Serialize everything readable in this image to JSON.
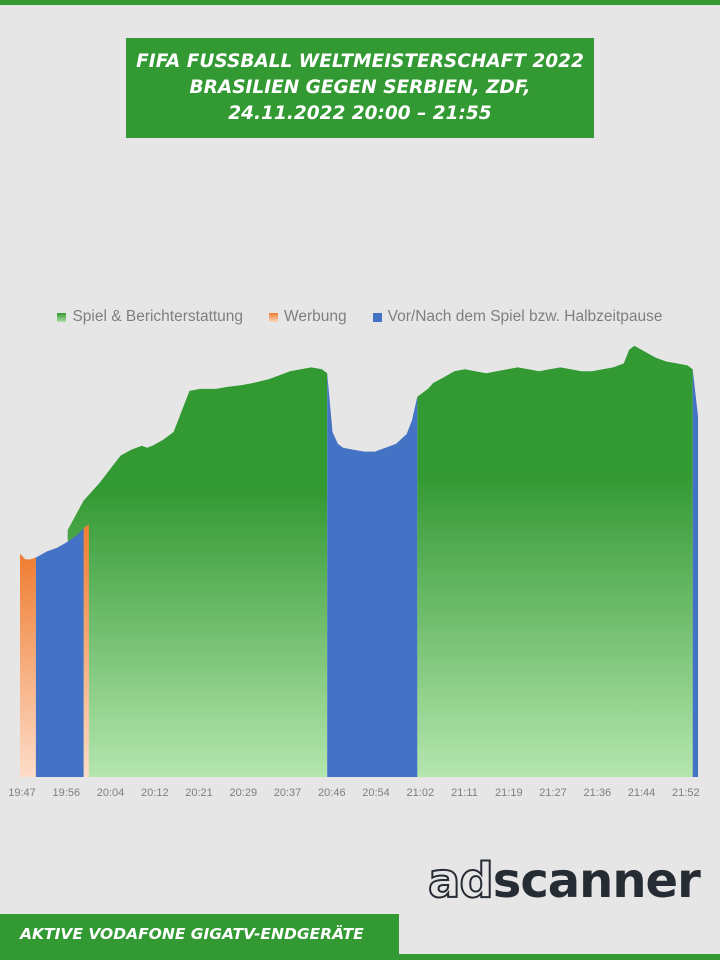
{
  "header": {
    "title_line1": "FIFA FUSSBALL WELTMEISTERSCHAFT 2022",
    "title_line2": "BRASILIEN GEGEN SERBIEN, ZDF,",
    "title_line3": "24.11.2022  20:00 – 21:55"
  },
  "footer": {
    "label": "AKTIVE VODAFONE GIGATV-ENDGERÄTE"
  },
  "logo": {
    "text_ad": "ad",
    "text_scanner": "scanner"
  },
  "colors": {
    "brand_green": "#339933",
    "spiel": "#339933",
    "werbung": "#ef7d31",
    "vor_nach": "#4472c4",
    "background": "#e6e6e6"
  },
  "chart_data": {
    "type": "area",
    "title": "",
    "xlabel": "",
    "ylabel": "",
    "legend_position": "top",
    "grid": false,
    "y_axis_shown": false,
    "ylim": [
      0,
      100
    ],
    "x_ticks": [
      "19:47",
      "19:56",
      "20:04",
      "20:12",
      "20:21",
      "20:29",
      "20:37",
      "20:46",
      "20:54",
      "21:02",
      "21:11",
      "21:19",
      "21:27",
      "21:36",
      "21:44",
      "21:52"
    ],
    "x_range": [
      "19:47",
      "21:55"
    ],
    "series": [
      {
        "name": "Spiel & Berichterstattung",
        "color": "#339933",
        "segments": [
          {
            "start": "19:56",
            "end": "20:45",
            "x": [
              "19:56",
              "19:57",
              "19:58",
              "19:59",
              "20:00",
              "20:01",
              "20:02",
              "20:04",
              "20:06",
              "20:08",
              "20:10",
              "20:11",
              "20:12",
              "20:14",
              "20:16",
              "20:19",
              "20:21",
              "20:24",
              "20:26",
              "20:29",
              "20:31",
              "20:34",
              "20:36",
              "20:38",
              "20:40",
              "20:42",
              "20:44",
              "20:45"
            ],
            "y": [
              63.0,
              65.5,
              68.0,
              70.5,
              72.0,
              73.5,
              75.0,
              78.5,
              82.0,
              83.5,
              84.5,
              84.0,
              84.5,
              86.0,
              88.0,
              98.5,
              99.0,
              99.0,
              99.5,
              100.0,
              100.5,
              101.5,
              102.5,
              103.5,
              104.0,
              104.5,
              104.0,
              103.0
            ]
          },
          {
            "start": "21:02",
            "end": "21:54",
            "x": [
              "21:02",
              "21:04",
              "21:05",
              "21:07",
              "21:09",
              "21:11",
              "21:13",
              "21:15",
              "21:17",
              "21:19",
              "21:21",
              "21:23",
              "21:25",
              "21:27",
              "21:29",
              "21:31",
              "21:33",
              "21:35",
              "21:37",
              "21:39",
              "21:41",
              "21:42",
              "21:43",
              "21:45",
              "21:47",
              "21:49",
              "21:51",
              "21:53",
              "21:54"
            ],
            "y": [
              97.0,
              99.0,
              100.5,
              102.0,
              103.5,
              104.0,
              103.5,
              103.0,
              103.5,
              104.0,
              104.5,
              104.0,
              103.5,
              104.0,
              104.5,
              104.0,
              103.5,
              103.5,
              104.0,
              104.5,
              105.5,
              109.0,
              110.0,
              108.5,
              107.0,
              106.0,
              105.5,
              105.0,
              104.0
            ]
          }
        ]
      },
      {
        "name": "Werbung",
        "color": "#ef7d31",
        "segments": [
          {
            "start": "19:47",
            "end": "19:50",
            "x": [
              "19:47",
              "19:48",
              "19:49",
              "19:50"
            ],
            "y": [
              57.0,
              55.5,
              55.5,
              56.0
            ]
          },
          {
            "start": "19:59",
            "end": "20:00",
            "x": [
              "19:59",
              "20:00"
            ],
            "y": [
              63.5,
              64.5
            ]
          }
        ]
      },
      {
        "name": "Vor/Nach dem Spiel bzw. Halbzeitpause",
        "color": "#4472c4",
        "segments": [
          {
            "start": "19:50",
            "end": "19:59",
            "x": [
              "19:50",
              "19:52",
              "19:54",
              "19:56",
              "19:58",
              "19:59"
            ],
            "y": [
              56.0,
              57.5,
              58.5,
              60.0,
              62.0,
              63.5
            ]
          },
          {
            "start": "20:45",
            "end": "21:02",
            "x": [
              "20:45",
              "20:46",
              "20:47",
              "20:48",
              "20:50",
              "20:52",
              "20:54",
              "20:56",
              "20:58",
              "21:00",
              "21:01",
              "21:02"
            ],
            "y": [
              103.0,
              88.0,
              85.0,
              84.0,
              83.5,
              83.0,
              83.0,
              84.0,
              85.0,
              87.5,
              91.0,
              97.0
            ]
          },
          {
            "start": "21:54",
            "end": "21:55",
            "x": [
              "21:54",
              "21:55"
            ],
            "y": [
              104.0,
              92.0
            ]
          }
        ]
      }
    ]
  }
}
